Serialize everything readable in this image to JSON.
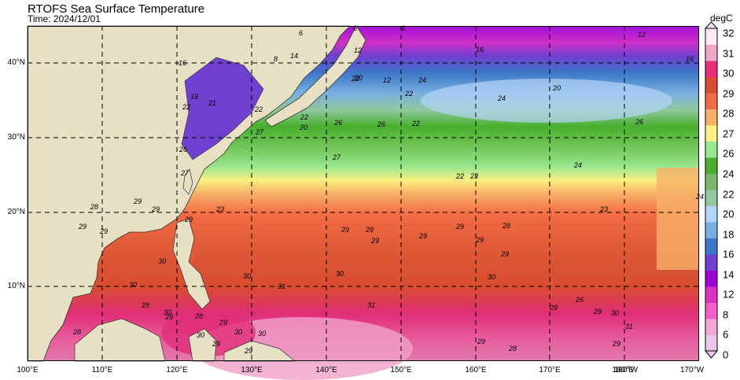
{
  "title": "RTOFS Sea Surface Temperature",
  "subtitle": "Time: 2024/12/01",
  "colorbar": {
    "unit": "degC",
    "ticks": [
      "0",
      "6",
      "8",
      "12",
      "14",
      "16",
      "18",
      "20",
      "22",
      "24",
      "26",
      "27",
      "28",
      "29",
      "30",
      "31",
      "32"
    ],
    "colors": [
      "#e8c8e8",
      "#f4a6d4",
      "#f460c8",
      "#dc30c8",
      "#a000d8",
      "#7040d0",
      "#3c78c8",
      "#78aee0",
      "#b4d4f8",
      "#90c8a0",
      "#78b868",
      "#48b02c",
      "#98e890",
      "#f8f080",
      "#f8b068",
      "#f46c44",
      "#d84c30",
      "#e82e78",
      "#f0a8c8",
      "#fce8f4"
    ]
  },
  "map": {
    "lat_labels": [
      "40°N",
      "30°N",
      "20°N",
      "10°N"
    ],
    "lon_labels": [
      "100°E",
      "110°E",
      "120°E",
      "130°E",
      "140°E",
      "150°E",
      "160°E",
      "170°E",
      "180°W",
      "180°E",
      "170°W"
    ]
  },
  "contour_labels": [
    "6",
    "8",
    "14",
    "12",
    "12",
    "6",
    "6",
    "16",
    "16",
    "12",
    "20",
    "16",
    "18",
    "22",
    "21",
    "22",
    "22",
    "20",
    "20",
    "22",
    "22",
    "24",
    "22",
    "24",
    "26",
    "26",
    "26",
    "27",
    "27",
    "26",
    "27",
    "24",
    "22",
    "23",
    "24",
    "23",
    "23",
    "29",
    "28",
    "29",
    "29",
    "29",
    "29",
    "29",
    "29",
    "29",
    "29",
    "29",
    "29",
    "28",
    "29",
    "30",
    "30",
    "31",
    "30",
    "31",
    "30",
    "30",
    "28",
    "30",
    "28",
    "28",
    "28",
    "29",
    "30",
    "29",
    "30",
    "29",
    "30",
    "29",
    "28",
    "29",
    "26",
    "29",
    "30",
    "29",
    "31"
  ]
}
